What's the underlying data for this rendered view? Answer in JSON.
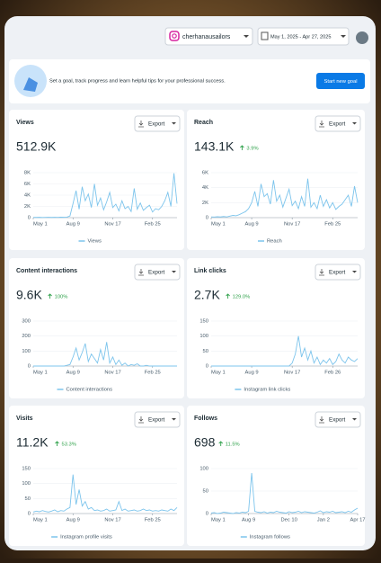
{
  "header": {
    "account": "cherhanausailors",
    "date_range": "May 1, 2025 - Apr 27, 2025"
  },
  "banner": {
    "text": "Set a goal, track progress and learn helpful tips for your professional success.",
    "button": "Start new goal"
  },
  "chart_data": [
    {
      "type": "line",
      "title": "Views",
      "button": "Export",
      "total": "512.9K",
      "xlim": [
        0,
        47
      ],
      "ylim": [
        0,
        8000
      ],
      "xticks": [
        {
          "value": 0,
          "label": "May 1"
        },
        {
          "value": 13,
          "label": "Aug 9"
        },
        {
          "value": 26,
          "label": "Nov 17"
        },
        {
          "value": 39,
          "label": "Feb 25"
        }
      ],
      "yticks": [
        0,
        {
          "value": 2000,
          "label": "2K"
        },
        {
          "value": 4000,
          "label": "4K"
        },
        {
          "value": 6000,
          "label": "6K"
        },
        {
          "value": 8000,
          "label": "8K"
        }
      ],
      "series": [
        {
          "name": "Views",
          "color": "#7cc4ec",
          "values": [
            50,
            40,
            60,
            30,
            50,
            70,
            40,
            60,
            50,
            80,
            60,
            90,
            300,
            2500,
            4800,
            1500,
            5500,
            3000,
            4200,
            1800,
            6000,
            2200,
            3500,
            1400,
            2800,
            4500,
            1800,
            2400,
            1200,
            3000,
            1600,
            2000,
            1100,
            5200,
            1500,
            2600,
            1300,
            1800,
            2200,
            1000,
            1600,
            1400,
            2000,
            3000,
            4500,
            2000,
            7900,
            2500
          ]
        }
      ]
    },
    {
      "type": "line",
      "title": "Reach",
      "button": "Export",
      "total": "143.1K",
      "change": "3.9%",
      "xlim": [
        0,
        47
      ],
      "ylim": [
        0,
        6000
      ],
      "xticks": [
        {
          "value": 0,
          "label": "May 1"
        },
        {
          "value": 13,
          "label": "Aug 9"
        },
        {
          "value": 26,
          "label": "Nov 17"
        },
        {
          "value": 39,
          "label": "Feb 25"
        }
      ],
      "yticks": [
        0,
        {
          "value": 2000,
          "label": "2K"
        },
        {
          "value": 4000,
          "label": "4K"
        },
        {
          "value": 6000,
          "label": "6K"
        }
      ],
      "series": [
        {
          "name": "Reach",
          "color": "#7cc4ec",
          "values": [
            100,
            80,
            120,
            90,
            150,
            100,
            200,
            300,
            250,
            400,
            600,
            800,
            1200,
            2000,
            3500,
            1500,
            4500,
            2800,
            3200,
            1800,
            5000,
            2200,
            3000,
            1400,
            2600,
            3800,
            1600,
            2200,
            1200,
            2800,
            1500,
            5200,
            1400,
            2000,
            1200,
            3000,
            1500,
            2400,
            1300,
            2000,
            1100,
            1500,
            1800,
            2400,
            3000,
            1500,
            4200,
            2000
          ]
        }
      ]
    },
    {
      "type": "line",
      "title": "Content interactions",
      "button": "Export",
      "total": "9.6K",
      "change": "100%",
      "xlim": [
        0,
        47
      ],
      "ylim": [
        0,
        300
      ],
      "xticks": [
        {
          "value": 0,
          "label": "May 1"
        },
        {
          "value": 13,
          "label": "Aug 9"
        },
        {
          "value": 26,
          "label": "Nov 17"
        },
        {
          "value": 39,
          "label": "Feb 25"
        }
      ],
      "yticks": [
        0,
        100,
        200,
        300
      ],
      "series": [
        {
          "name": "Content interactions",
          "color": "#7cc4ec",
          "values": [
            0,
            0,
            0,
            0,
            0,
            0,
            0,
            0,
            0,
            0,
            0,
            5,
            10,
            60,
            120,
            40,
            90,
            150,
            30,
            80,
            50,
            20,
            110,
            40,
            160,
            20,
            60,
            10,
            40,
            5,
            20,
            0,
            10,
            5,
            15,
            0,
            0,
            5,
            0,
            0,
            0,
            0,
            0,
            0,
            0,
            0,
            0,
            0
          ]
        }
      ]
    },
    {
      "type": "line",
      "title": "Link clicks",
      "button": "Export",
      "total": "2.7K",
      "change": "129.0%",
      "xlim": [
        0,
        47
      ],
      "ylim": [
        0,
        150
      ],
      "xticks": [
        {
          "value": 0,
          "label": "May 1"
        },
        {
          "value": 13,
          "label": "Aug 9"
        },
        {
          "value": 26,
          "label": "Nov 17"
        },
        {
          "value": 39,
          "label": "Feb 26"
        }
      ],
      "yticks": [
        0,
        50,
        100,
        150
      ],
      "series": [
        {
          "name": "Instagram link clicks",
          "color": "#7cc4ec",
          "values": [
            0,
            0,
            0,
            0,
            0,
            0,
            0,
            0,
            0,
            0,
            0,
            0,
            0,
            0,
            0,
            0,
            0,
            0,
            0,
            0,
            0,
            0,
            0,
            0,
            0,
            0,
            10,
            40,
            100,
            30,
            60,
            20,
            50,
            10,
            30,
            5,
            20,
            10,
            25,
            5,
            15,
            40,
            20,
            10,
            30,
            20,
            15,
            25
          ]
        }
      ]
    },
    {
      "type": "line",
      "title": "Visits",
      "button": "Export",
      "total": "11.2K",
      "change": "53.3%",
      "xlim": [
        0,
        47
      ],
      "ylim": [
        0,
        150
      ],
      "xticks": [
        {
          "value": 0,
          "label": "May 1"
        },
        {
          "value": 13,
          "label": "Aug 9"
        },
        {
          "value": 26,
          "label": "Nov 17"
        },
        {
          "value": 39,
          "label": "Feb 25"
        }
      ],
      "yticks": [
        0,
        50,
        100,
        150
      ],
      "series": [
        {
          "name": "Instagram profile visits",
          "color": "#7cc4ec",
          "values": [
            5,
            8,
            6,
            10,
            7,
            5,
            8,
            12,
            6,
            10,
            8,
            15,
            20,
            130,
            30,
            80,
            25,
            40,
            15,
            20,
            10,
            12,
            8,
            10,
            15,
            8,
            10,
            12,
            40,
            10,
            15,
            8,
            10,
            12,
            8,
            10,
            15,
            10,
            12,
            8,
            10,
            8,
            12,
            10,
            8,
            15,
            10,
            20
          ]
        }
      ]
    },
    {
      "type": "line",
      "title": "Follows",
      "button": "Export",
      "total": "698",
      "change": "11.5%",
      "xlim": [
        0,
        47
      ],
      "ylim": [
        0,
        100
      ],
      "xticks": [
        {
          "value": 0,
          "label": "May 1"
        },
        {
          "value": 12,
          "label": "Aug 9"
        },
        {
          "value": 25,
          "label": "Dec 10"
        },
        {
          "value": 36,
          "label": "Jan 2"
        },
        {
          "value": 47,
          "label": "Apr 17"
        }
      ],
      "yticks": [
        0,
        50,
        100
      ],
      "series": [
        {
          "name": "Instagram follows",
          "color": "#7cc4ec",
          "values": [
            1,
            2,
            0,
            1,
            3,
            2,
            1,
            0,
            2,
            1,
            3,
            2,
            5,
            90,
            5,
            3,
            2,
            4,
            1,
            3,
            2,
            5,
            3,
            2,
            1,
            4,
            2,
            3,
            5,
            2,
            4,
            3,
            2,
            1,
            3,
            6,
            2,
            4,
            3,
            5,
            2,
            3,
            4,
            2,
            5,
            3,
            8,
            12
          ]
        }
      ]
    }
  ]
}
